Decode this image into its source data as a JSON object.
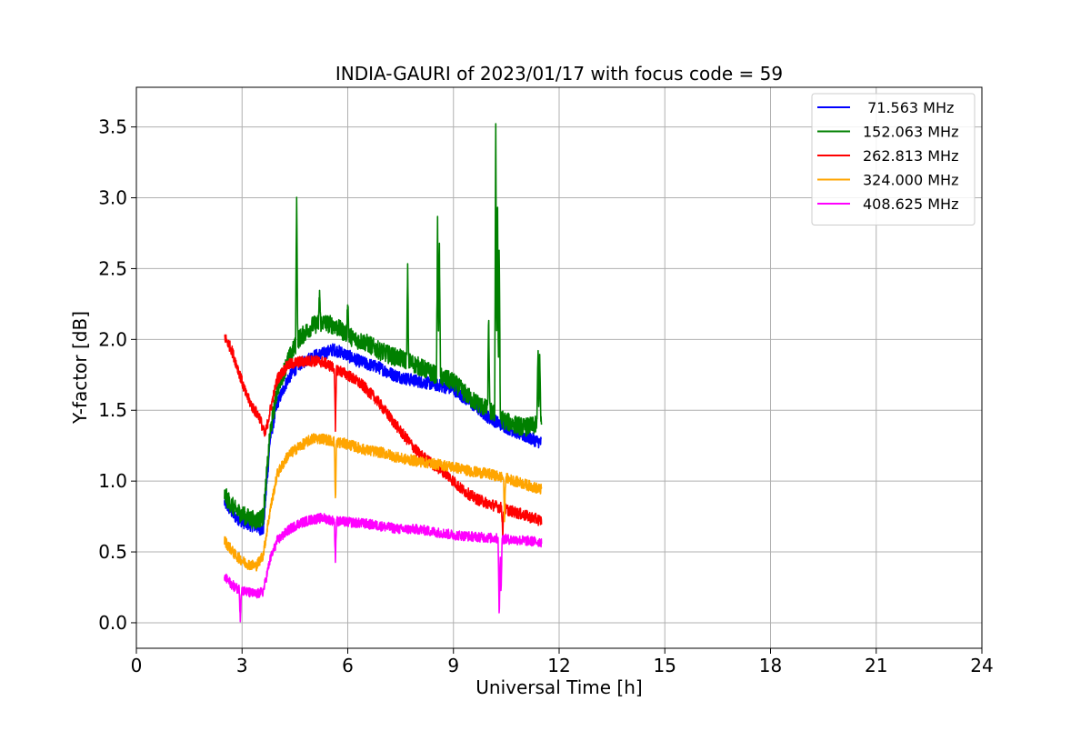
{
  "chart_data": {
    "type": "line",
    "title": "INDIA-GAURI of 2023/01/17 with focus code = 59",
    "xlabel": "Universal Time [h]",
    "ylabel": "Y-factor [dB]",
    "xlim": [
      0,
      24
    ],
    "ylim": [
      -0.18,
      3.78
    ],
    "xticks": [
      0,
      3,
      6,
      9,
      12,
      15,
      18,
      21,
      24
    ],
    "xtick_labels": [
      "0",
      "3",
      "6",
      "9",
      "12",
      "15",
      "18",
      "21",
      "24"
    ],
    "yticks": [
      0.0,
      0.5,
      1.0,
      1.5,
      2.0,
      2.5,
      3.0,
      3.5
    ],
    "ytick_labels": [
      "0.0",
      "0.5",
      "1.0",
      "1.5",
      "2.0",
      "2.5",
      "3.0",
      "3.5"
    ],
    "grid": true,
    "legend_position": "top-right",
    "series": [
      {
        "name": " 71.563 MHz",
        "color": "#0000ff",
        "x": [
          2.5,
          2.8,
          3.1,
          3.4,
          3.6,
          3.8,
          4.0,
          4.3,
          4.6,
          5.0,
          5.3,
          5.6,
          5.9,
          6.2,
          6.5,
          6.9,
          7.3,
          7.7,
          8.1,
          8.5,
          9.0,
          9.5,
          10.0,
          10.5,
          11.0,
          11.5
        ],
        "y": [
          0.85,
          0.75,
          0.7,
          0.68,
          0.65,
          1.3,
          1.55,
          1.72,
          1.82,
          1.88,
          1.9,
          1.93,
          1.9,
          1.86,
          1.83,
          1.8,
          1.75,
          1.72,
          1.7,
          1.68,
          1.65,
          1.55,
          1.45,
          1.38,
          1.32,
          1.27
        ],
        "noise": 0.045
      },
      {
        "name": "152.063 MHz",
        "color": "#008000",
        "x": [
          2.5,
          2.8,
          3.1,
          3.4,
          3.6,
          3.8,
          4.0,
          4.3,
          4.6,
          5.0,
          5.3,
          5.6,
          5.9,
          6.2,
          6.5,
          6.9,
          7.3,
          7.7,
          8.1,
          8.5,
          9.0,
          9.5,
          10.0,
          10.5,
          11.0,
          11.5
        ],
        "y": [
          0.9,
          0.8,
          0.75,
          0.72,
          0.75,
          1.35,
          1.65,
          1.85,
          2.0,
          2.1,
          2.12,
          2.1,
          2.05,
          2.0,
          1.98,
          1.92,
          1.88,
          1.85,
          1.8,
          1.75,
          1.7,
          1.58,
          1.5,
          1.42,
          1.38,
          1.4
        ],
        "noise": 0.065,
        "spikes": [
          [
            4.55,
            3.08
          ],
          [
            7.7,
            2.5
          ],
          [
            8.55,
            2.85
          ],
          [
            8.6,
            2.75
          ],
          [
            10.2,
            3.6
          ],
          [
            10.25,
            3.12
          ],
          [
            10.3,
            2.7
          ],
          [
            10.0,
            2.2
          ],
          [
            11.4,
            1.95
          ],
          [
            11.45,
            1.9
          ],
          [
            6.0,
            2.3
          ],
          [
            5.2,
            2.35
          ]
        ]
      },
      {
        "name": "262.813 MHz",
        "color": "#ff0000",
        "x": [
          2.5,
          2.7,
          2.9,
          3.1,
          3.3,
          3.5,
          3.65,
          3.8,
          4.0,
          4.3,
          4.6,
          5.0,
          5.3,
          5.6,
          6.0,
          6.4,
          6.8,
          7.2,
          7.6,
          8.0,
          8.4,
          8.8,
          9.2,
          9.6,
          10.0,
          10.5,
          11.0,
          11.5
        ],
        "y": [
          2.02,
          1.93,
          1.78,
          1.62,
          1.52,
          1.45,
          1.32,
          1.5,
          1.72,
          1.82,
          1.84,
          1.85,
          1.84,
          1.8,
          1.75,
          1.68,
          1.58,
          1.45,
          1.32,
          1.2,
          1.12,
          1.05,
          0.95,
          0.88,
          0.84,
          0.8,
          0.76,
          0.72
        ],
        "noise": 0.04,
        "spikes": [
          [
            5.65,
            1.35
          ],
          [
            10.4,
            0.62
          ]
        ]
      },
      {
        "name": "324.000 MHz",
        "color": "#ffa500",
        "x": [
          2.5,
          2.8,
          3.1,
          3.4,
          3.6,
          3.8,
          4.0,
          4.3,
          4.6,
          5.0,
          5.3,
          5.6,
          6.0,
          6.5,
          7.0,
          7.5,
          8.0,
          8.5,
          9.0,
          9.5,
          10.0,
          10.5,
          11.0,
          11.5
        ],
        "y": [
          0.58,
          0.48,
          0.42,
          0.4,
          0.48,
          0.8,
          1.05,
          1.18,
          1.24,
          1.3,
          1.3,
          1.28,
          1.26,
          1.22,
          1.2,
          1.16,
          1.14,
          1.12,
          1.1,
          1.07,
          1.05,
          1.02,
          0.98,
          0.94
        ],
        "noise": 0.038,
        "spikes": [
          [
            5.65,
            0.85
          ],
          [
            10.45,
            0.7
          ]
        ]
      },
      {
        "name": "408.625 MHz",
        "color": "#ff00ff",
        "x": [
          2.5,
          2.8,
          3.1,
          3.4,
          3.6,
          3.8,
          4.0,
          4.3,
          4.6,
          5.0,
          5.3,
          5.6,
          6.0,
          6.5,
          7.0,
          7.5,
          8.0,
          8.5,
          9.0,
          9.5,
          10.0,
          10.5,
          11.0,
          11.5
        ],
        "y": [
          0.32,
          0.25,
          0.22,
          0.2,
          0.22,
          0.45,
          0.58,
          0.65,
          0.7,
          0.73,
          0.74,
          0.72,
          0.71,
          0.7,
          0.68,
          0.66,
          0.66,
          0.64,
          0.62,
          0.61,
          0.6,
          0.59,
          0.58,
          0.57
        ],
        "noise": 0.035,
        "spikes": [
          [
            2.95,
            0.03
          ],
          [
            5.65,
            0.45
          ],
          [
            10.3,
            0.0
          ],
          [
            10.35,
            0.2
          ]
        ]
      }
    ]
  }
}
